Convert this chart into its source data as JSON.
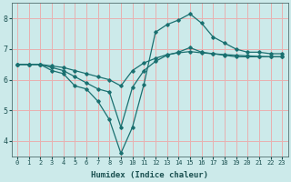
{
  "xlabel": "Humidex (Indice chaleur)",
  "bg_color": "#cceaea",
  "grid_color": "#e8b0b0",
  "line_color": "#1a7070",
  "xlim": [
    -0.5,
    23.5
  ],
  "ylim": [
    3.5,
    8.5
  ],
  "xticks": [
    0,
    1,
    2,
    3,
    4,
    5,
    6,
    7,
    8,
    9,
    10,
    11,
    12,
    13,
    14,
    15,
    16,
    17,
    18,
    19,
    20,
    21,
    22,
    23
  ],
  "yticks": [
    4,
    5,
    6,
    7,
    8
  ],
  "series": [
    {
      "x": [
        0,
        1,
        2,
        3,
        4,
        5,
        6,
        7,
        8,
        9,
        10,
        11,
        12,
        13,
        14,
        15,
        16,
        17,
        18,
        19,
        20,
        21,
        22,
        23
      ],
      "y": [
        6.5,
        6.5,
        6.5,
        6.3,
        6.2,
        5.8,
        5.7,
        5.3,
        4.7,
        3.6,
        4.45,
        5.85,
        7.55,
        7.8,
        7.95,
        8.15,
        7.85,
        7.4,
        7.2,
        7.0,
        6.9,
        6.9,
        6.85,
        6.85
      ]
    },
    {
      "x": [
        0,
        1,
        2,
        3,
        4,
        5,
        6,
        7,
        8,
        9,
        10,
        11,
        12,
        13,
        14,
        15,
        16,
        17,
        18,
        19,
        20,
        21,
        22,
        23
      ],
      "y": [
        6.5,
        6.5,
        6.5,
        6.4,
        6.3,
        6.1,
        5.9,
        5.7,
        5.6,
        4.45,
        5.75,
        6.3,
        6.6,
        6.8,
        6.9,
        7.05,
        6.9,
        6.85,
        6.8,
        6.75,
        6.75,
        6.75,
        6.75,
        6.75
      ]
    },
    {
      "x": [
        0,
        1,
        2,
        3,
        4,
        5,
        6,
        7,
        8,
        9,
        10,
        11,
        12,
        13,
        14,
        15,
        16,
        17,
        18,
        19,
        20,
        21,
        22,
        23
      ],
      "y": [
        6.5,
        6.5,
        6.5,
        6.45,
        6.4,
        6.3,
        6.2,
        6.1,
        6.0,
        5.8,
        6.3,
        6.55,
        6.7,
        6.82,
        6.88,
        6.92,
        6.88,
        6.85,
        6.82,
        6.8,
        6.78,
        6.76,
        6.75,
        6.75
      ]
    }
  ]
}
